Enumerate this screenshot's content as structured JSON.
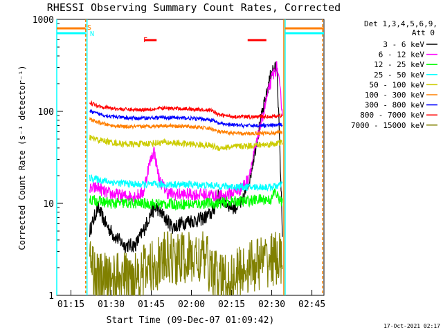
{
  "chart_data": {
    "type": "line",
    "title": "RHESSI Observing Summary Count Rates, Corrected",
    "xlabel": "Start Time (09-Dec-07 01:09:42)",
    "ylabel": "Corrected Count Rate (s⁻¹ detector⁻¹)",
    "y_scale": "log",
    "ylim": [
      1,
      1000
    ],
    "xlim": [
      "01:09:42",
      "02:49:30"
    ],
    "x_ticks": [
      "01:15",
      "01:30",
      "01:45",
      "02:00",
      "02:15",
      "02:30",
      "02:45"
    ],
    "y_ticks": [
      "1",
      "10",
      "100",
      "1000"
    ],
    "timestamp": "17-Oct-2021 02:17",
    "legend_header": [
      "Det 1,3,4,5,6,9,",
      "Att 0"
    ],
    "markers": {
      "s_label": "S",
      "n_label": "N",
      "f_label": "F"
    },
    "bar_colors": {
      "saa": "#ff7f00",
      "night": "#00ffff",
      "flare": "#ff0000"
    },
    "series": [
      {
        "name": "3 - 6 keV",
        "color": "#000000",
        "x": [
          "01:22:00",
          "01:25:00",
          "01:28:00",
          "01:31:00",
          "01:35:00",
          "01:39:00",
          "01:42:00",
          "01:45:00",
          "01:47:00",
          "01:50:00",
          "01:53:00",
          "01:56:00",
          "01:59:00",
          "02:02:00",
          "02:05:00",
          "02:08:00",
          "02:10:00",
          "02:13:00",
          "02:16:00",
          "02:19:00",
          "02:22:00",
          "02:25:00",
          "02:28:00",
          "02:30:00",
          "02:32:00",
          "02:34:00"
        ],
        "values": [
          5,
          9,
          6,
          4.5,
          3.5,
          3.5,
          5,
          8,
          9,
          7,
          5.5,
          6,
          6.5,
          6.5,
          7,
          8,
          12,
          10,
          9,
          10,
          20,
          60,
          150,
          280,
          300,
          5
        ]
      },
      {
        "name": "6 - 12 keV",
        "color": "#ff00ff",
        "x": [
          "01:22:00",
          "01:25:00",
          "01:28:00",
          "01:31:00",
          "01:35:00",
          "01:39:00",
          "01:42:00",
          "01:44:00",
          "01:46:00",
          "01:48:00",
          "01:51:00",
          "01:54:00",
          "01:57:00",
          "02:00:00",
          "02:03:00",
          "02:06:00",
          "02:09:00",
          "02:12:00",
          "02:15:00",
          "02:18:00",
          "02:21:00",
          "02:24:00",
          "02:27:00",
          "02:30:00",
          "02:32:00",
          "02:34:00"
        ],
        "values": [
          14,
          15,
          13,
          12.5,
          12,
          12,
          13,
          25,
          38,
          18,
          13,
          12.5,
          12.5,
          12.5,
          12.5,
          12.5,
          12,
          12,
          13,
          14,
          18,
          40,
          100,
          230,
          310,
          100
        ]
      },
      {
        "name": "12 - 25 keV",
        "color": "#00ff00",
        "x": [
          "01:22:00",
          "01:30:00",
          "01:40:00",
          "01:50:00",
          "02:00:00",
          "02:05:00",
          "02:10:00",
          "02:15:00",
          "02:20:00",
          "02:25:00",
          "02:30:00",
          "02:31:00",
          "02:33:00",
          "02:34:00"
        ],
        "values": [
          11,
          10,
          10,
          9.8,
          9.8,
          10,
          10,
          10.5,
          10.5,
          11,
          11,
          13.5,
          11,
          10
        ]
      },
      {
        "name": "25 - 50 keV",
        "color": "#00ffff",
        "x": [
          "01:22:00",
          "01:30:00",
          "01:40:00",
          "01:50:00",
          "02:00:00",
          "02:10:00",
          "02:20:00",
          "02:30:00",
          "02:34:00"
        ],
        "values": [
          19,
          17,
          16,
          16,
          16,
          15.5,
          15,
          15,
          16
        ]
      },
      {
        "name": "50 - 100 keV",
        "color": "#cccc00",
        "x": [
          "01:22:00",
          "01:25:00",
          "01:30:00",
          "01:35:00",
          "01:40:00",
          "01:45:00",
          "01:50:00",
          "01:55:00",
          "02:00:00",
          "02:05:00",
          "02:08:00",
          "02:10:00",
          "02:15:00",
          "02:20:00",
          "02:25:00",
          "02:30:00",
          "02:34:00"
        ],
        "values": [
          52,
          49,
          46,
          44,
          44,
          45,
          46,
          45,
          44,
          43,
          42,
          40,
          41,
          42,
          43,
          44,
          46
        ]
      },
      {
        "name": "100 - 300 keV",
        "color": "#ff7f00",
        "x": [
          "01:22:00",
          "01:25:00",
          "01:30:00",
          "01:35:00",
          "01:40:00",
          "01:45:00",
          "01:50:00",
          "01:55:00",
          "02:00:00",
          "02:05:00",
          "02:08:00",
          "02:10:00",
          "02:15:00",
          "02:20:00",
          "02:25:00",
          "02:30:00",
          "02:34:00"
        ],
        "values": [
          82,
          76,
          70,
          68,
          68,
          69,
          70,
          69,
          68,
          66,
          64,
          60,
          58,
          57,
          58,
          58,
          60
        ]
      },
      {
        "name": "300 - 800 keV",
        "color": "#0000ff",
        "x": [
          "01:22:00",
          "01:25:00",
          "01:30:00",
          "01:35:00",
          "01:40:00",
          "01:45:00",
          "01:50:00",
          "01:55:00",
          "02:00:00",
          "02:05:00",
          "02:08:00",
          "02:10:00",
          "02:15:00",
          "02:20:00",
          "02:25:00",
          "02:30:00",
          "02:34:00"
        ],
        "values": [
          100,
          94,
          88,
          85,
          84,
          85,
          86,
          85,
          84,
          82,
          80,
          74,
          71,
          70,
          70,
          70,
          72
        ]
      },
      {
        "name": "800 - 7000 keV",
        "color": "#ff0000",
        "x": [
          "01:22:00",
          "01:25:00",
          "01:30:00",
          "01:35:00",
          "01:40:00",
          "01:45:00",
          "01:50:00",
          "01:55:00",
          "02:00:00",
          "02:05:00",
          "02:08:00",
          "02:10:00",
          "02:15:00",
          "02:20:00",
          "02:25:00",
          "02:30:00",
          "02:34:00"
        ],
        "values": [
          125,
          115,
          108,
          105,
          104,
          106,
          108,
          107,
          106,
          104,
          102,
          92,
          88,
          87,
          87,
          88,
          90
        ]
      },
      {
        "name": "7000 - 15000 keV",
        "color": "#808000",
        "x": [
          "01:22:00",
          "01:25:00",
          "01:35:00",
          "01:45:00",
          "01:50:00",
          "02:00:00",
          "02:05:00",
          "02:10:00",
          "02:15:00",
          "02:20:00",
          "02:30:00",
          "02:34:00"
        ],
        "values": [
          2.5,
          1.5,
          1.5,
          2,
          2.5,
          2.5,
          2.5,
          1.5,
          1.5,
          2,
          2.5,
          2.5
        ]
      }
    ]
  }
}
